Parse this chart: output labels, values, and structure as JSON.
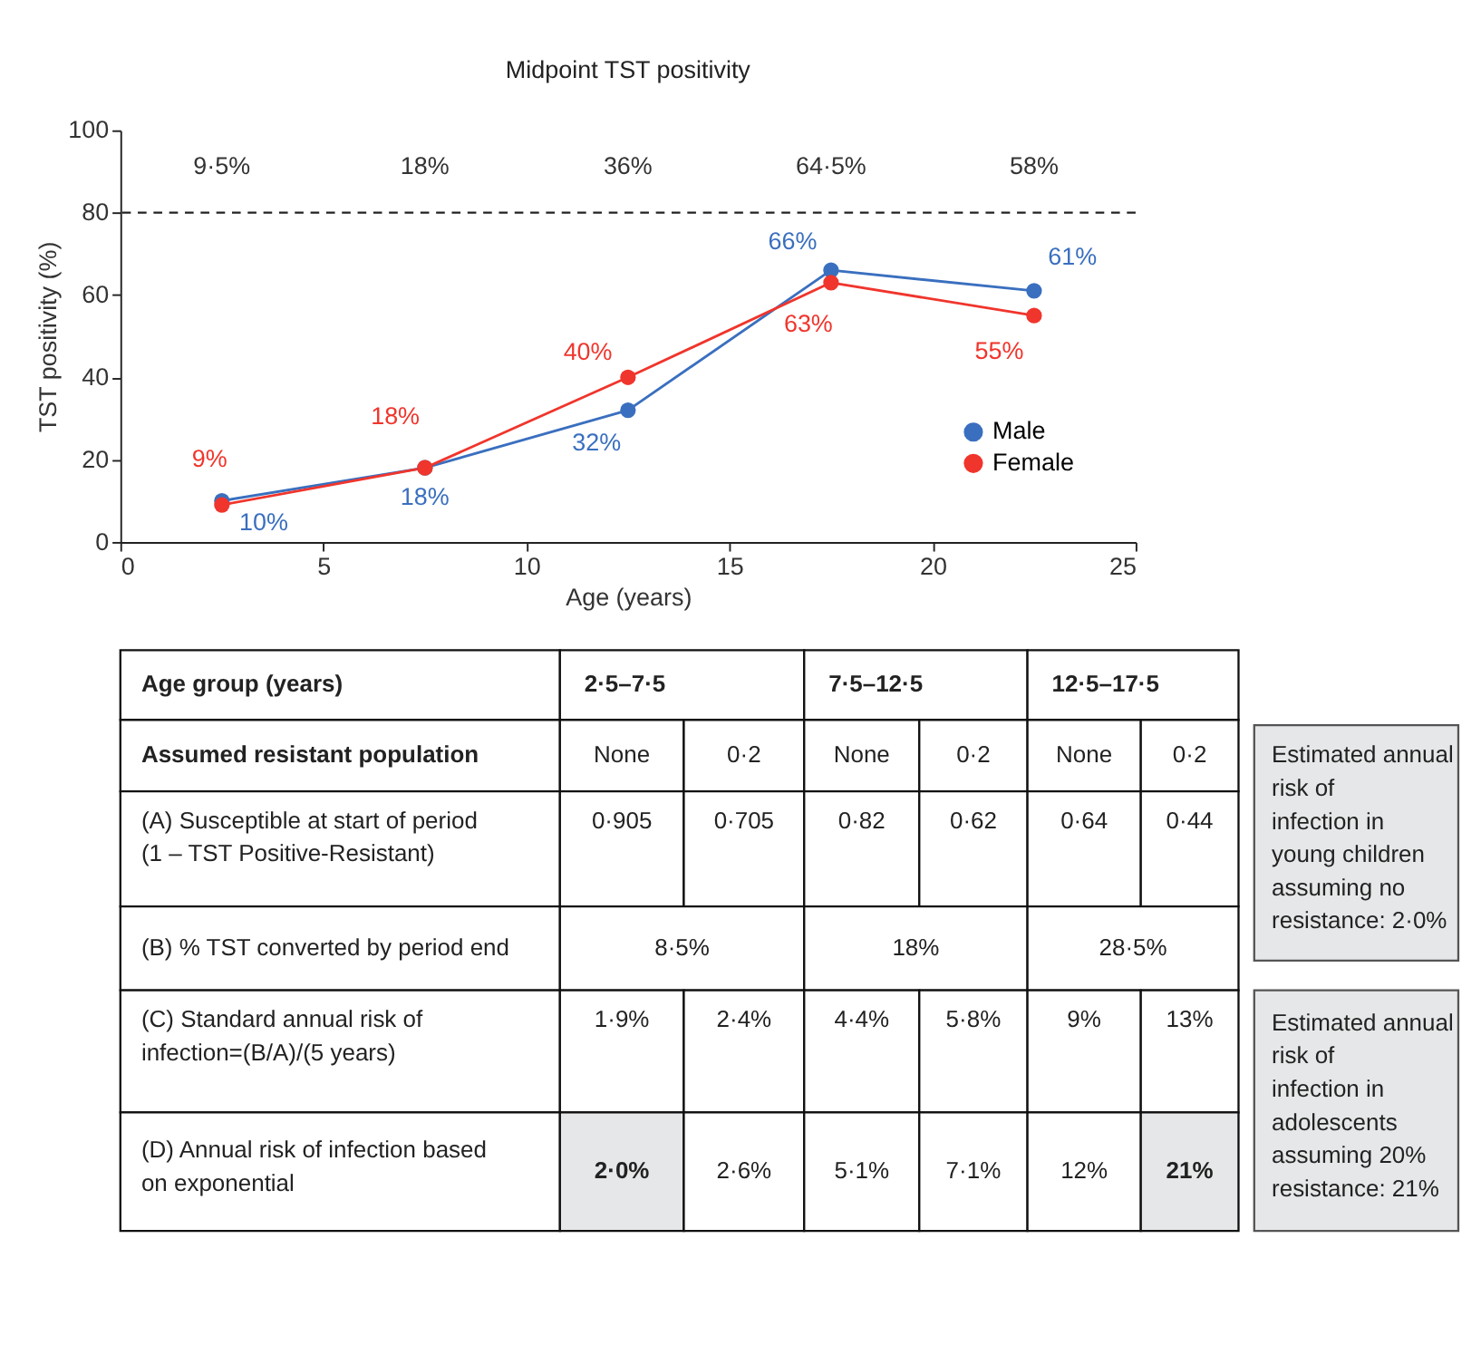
{
  "chart_data": [
    {
      "type": "line",
      "title": "Midpoint TST positivity",
      "xlabel": "Age (years)",
      "ylabel": "TST positivity (%)",
      "x": [
        2.5,
        7.5,
        12.5,
        17.5,
        22.5
      ],
      "series": [
        {
          "name": "Male",
          "color": "#3a6fbf",
          "values": [
            10,
            18,
            32,
            66,
            61
          ],
          "value_labels": [
            "10%",
            "18%",
            "32%",
            "66%",
            "61%"
          ]
        },
        {
          "name": "Female",
          "color": "#f0352c",
          "values": [
            9,
            18,
            40,
            63,
            55
          ],
          "value_labels": [
            "9%",
            "18%",
            "40%",
            "63%",
            "55%"
          ]
        }
      ],
      "xlim": [
        0,
        25
      ],
      "xticks": [
        0,
        5,
        10,
        15,
        20,
        25
      ],
      "ylim": [
        0,
        100
      ],
      "yticks": [
        0,
        20,
        40,
        60,
        80,
        100
      ],
      "ref_lines": [
        {
          "axis": "y",
          "value": 80,
          "line_style": "dashed",
          "color": "#222222"
        }
      ],
      "annotations": [
        "9·5%",
        "18%",
        "36%",
        "64·5%",
        "58%"
      ],
      "marker": "circle",
      "line_style": "solid",
      "legend": "bottom right",
      "grid": false
    },
    {
      "type": "other",
      "annotations": [
        "Age group (years)",
        "2·5–7·5",
        "7·5–12·5",
        "12·5–17·5",
        "Assumed resistant population",
        "None",
        "0·2",
        "None",
        "0·2",
        "None",
        "0·2",
        "(A) Susceptible at start of period (1 – TST Positive-Resistant)",
        "0·905",
        "0·705",
        "0·82",
        "0·62",
        "0·64",
        "0·44",
        "(B) % TST converted by period end",
        "8·5%",
        "18%",
        "28·5%",
        "(C) Standard annual risk of infection=(B/A)/(5 years)",
        "1·9%",
        "2·4%",
        "4·4%",
        "5·8%",
        "9%",
        "13%",
        "(D) Annual risk of infection based on exponential",
        "2·0%",
        "2·6%",
        "5·1%",
        "7·1%",
        "12%",
        "21%",
        "Estimated annual risk of infection in young children assuming no resistance: 2·0%",
        "Estimated annual risk of infection in adolescents assuming 20% resistance: 21%"
      ]
    }
  ]
}
